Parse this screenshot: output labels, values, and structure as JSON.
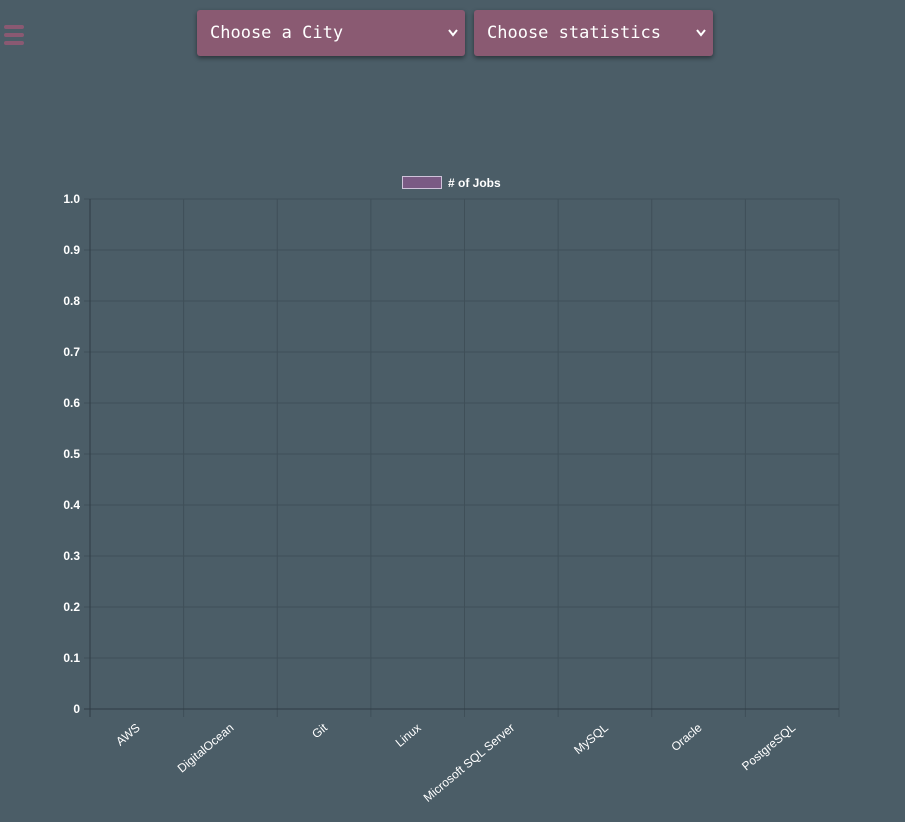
{
  "menu": {
    "icon": "hamburger-menu-icon"
  },
  "city_select": {
    "selected": "Choose a City",
    "icon": "chevron-down-icon"
  },
  "stats_select": {
    "selected": "Choose statistics",
    "icon": "chevron-down-icon"
  },
  "colors": {
    "background": "#4b5d67",
    "accent": "#8a5a72",
    "series": "#7a5a84",
    "grid": "#3f4f58"
  },
  "chart_data": {
    "type": "bar",
    "categories": [
      "AWS",
      "DigitalOcean",
      "Git",
      "Linux",
      "Microsoft SQL Server",
      "MySQL",
      "Oracle",
      "PostgreSQL"
    ],
    "series": [
      {
        "name": "# of Jobs",
        "values": [
          0,
          0,
          0,
          0,
          0,
          0,
          0,
          0
        ]
      }
    ],
    "ylim": [
      0,
      1.0
    ],
    "yticks": [
      "0",
      "0.1",
      "0.2",
      "0.3",
      "0.4",
      "0.5",
      "0.6",
      "0.7",
      "0.8",
      "0.9",
      "1.0"
    ],
    "legend": "top-center",
    "grid": true
  }
}
